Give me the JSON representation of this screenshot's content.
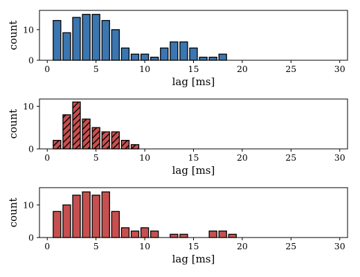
{
  "chart_data": [
    {
      "type": "bar",
      "xlabel": "lag [ms]",
      "ylabel": "count",
      "xlim": [
        -0.8,
        30.8
      ],
      "ylim": [
        0,
        16.3
      ],
      "xticks": [
        0,
        5,
        10,
        15,
        20,
        25,
        30
      ],
      "yticks": [
        0,
        10
      ],
      "bar_color": "#3b76b0",
      "hatch": false,
      "grid": false,
      "x": [
        1,
        2,
        3,
        4,
        5,
        6,
        7,
        8,
        9,
        10,
        11,
        12,
        13,
        14,
        15,
        16,
        17,
        18,
        19,
        20,
        21,
        22,
        23,
        24,
        25,
        26,
        27,
        28,
        29
      ],
      "values": [
        13,
        9,
        14,
        15,
        15,
        13,
        10,
        4,
        2,
        2,
        1,
        4,
        6,
        6,
        4,
        1,
        1,
        2,
        0,
        0,
        0,
        0,
        0,
        0,
        0,
        0,
        0,
        0,
        0
      ]
    },
    {
      "type": "bar",
      "xlabel": "lag [ms]",
      "ylabel": "count",
      "xlim": [
        -0.8,
        30.8
      ],
      "ylim": [
        0,
        11.7
      ],
      "xticks": [
        0,
        5,
        10,
        15,
        20,
        25,
        30
      ],
      "yticks": [
        0,
        10
      ],
      "bar_color": "#c6504f",
      "hatch": true,
      "grid": false,
      "x": [
        1,
        2,
        3,
        4,
        5,
        6,
        7,
        8,
        9,
        10,
        11,
        12,
        13,
        14,
        15,
        16,
        17,
        18,
        19,
        20,
        21,
        22,
        23,
        24,
        25,
        26,
        27,
        28,
        29
      ],
      "values": [
        2,
        8,
        11,
        7,
        5,
        4,
        4,
        2,
        1,
        0,
        0,
        0,
        0,
        0,
        0,
        0,
        0,
        0,
        0,
        0,
        0,
        0,
        0,
        0,
        0,
        0,
        0,
        0,
        0
      ]
    },
    {
      "type": "bar",
      "xlabel": "lag [ms]",
      "ylabel": "count",
      "xlim": [
        -0.8,
        30.8
      ],
      "ylim": [
        0,
        15.3
      ],
      "xticks": [
        0,
        5,
        10,
        15,
        20,
        25,
        30
      ],
      "yticks": [
        0,
        10
      ],
      "bar_color": "#c6504f",
      "hatch": false,
      "grid": false,
      "x": [
        1,
        2,
        3,
        4,
        5,
        6,
        7,
        8,
        9,
        10,
        11,
        12,
        13,
        14,
        15,
        16,
        17,
        18,
        19,
        20,
        21,
        22,
        23,
        24,
        25,
        26,
        27,
        28,
        29
      ],
      "values": [
        8,
        10,
        13,
        14,
        13,
        14,
        8,
        3,
        2,
        3,
        2,
        0,
        1,
        1,
        0,
        0,
        2,
        2,
        1,
        0,
        0,
        0,
        0,
        0,
        0,
        0,
        0,
        0,
        0
      ]
    }
  ]
}
